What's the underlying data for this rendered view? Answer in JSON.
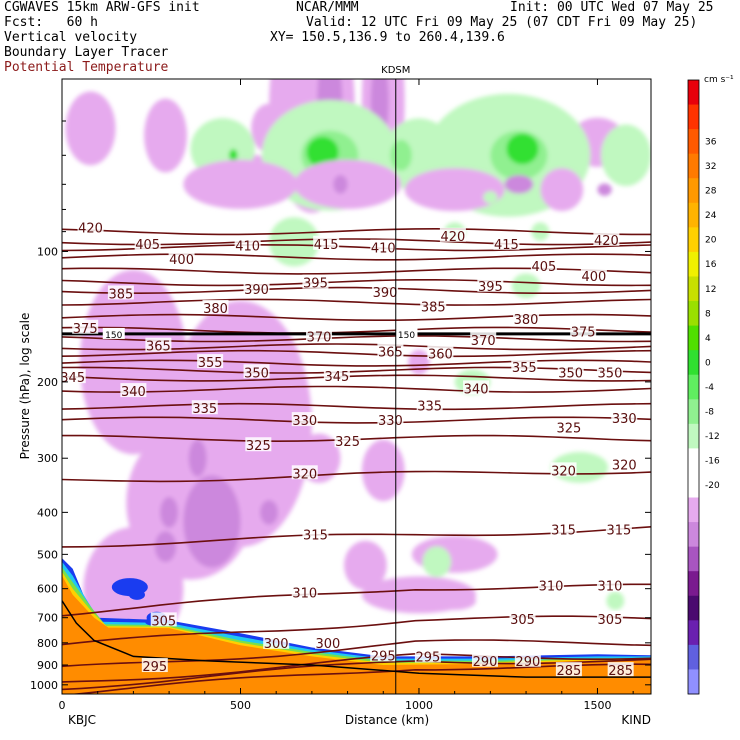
{
  "header": {
    "line1_left": "CGWAVES 15km ARW-GFS init",
    "line1_mid": "NCAR/MMM",
    "line1_right": "Init: 00 UTC Wed 07 May 25",
    "fcst": "Fcst:   60 h",
    "valid": "Valid: 12 UTC Fri 09 May 25 (07 CDT Fri 09 May 25)",
    "field1": "Vertical velocity",
    "xy": "XY= 150.5,136.9 to 260.4,139.6",
    "field2": "Boundary Layer Tracer",
    "field3": "Potential Temperature"
  },
  "colorbar": {
    "unit": "cm s⁻¹",
    "labels": [
      "36",
      "32",
      "28",
      "24",
      "20",
      "16",
      "12",
      "8",
      "4",
      "0",
      "-4",
      "-8",
      "-12",
      "-16",
      "-20"
    ],
    "colors": [
      "#e8000b",
      "#ff3300",
      "#ff5a00",
      "#ff7a00",
      "#ff9900",
      "#ffb300",
      "#ffd000",
      "#f0f000",
      "#c8e000",
      "#9ae000",
      "#50e000",
      "#30e030",
      "#60ee60",
      "#90f090",
      "#c0f8c0",
      "#ffffff",
      "#ffffff",
      "#e6aaee",
      "#cc88dd",
      "#a855c0",
      "#7a1a8f",
      "#4a0a6f",
      "#6a20b0",
      "#6060e0",
      "#9090ff"
    ]
  },
  "chart_data": {
    "type": "cross-section",
    "xlabel": "Distance (km)",
    "ylabel": "Pressure (hPa), log scale",
    "x_ticks": [
      "0",
      "500",
      "1000",
      "1500"
    ],
    "xlim": [
      0,
      1650
    ],
    "y_ticks": [
      "100",
      "200",
      "300",
      "400",
      "500",
      "600",
      "700",
      "800",
      "900",
      "1000"
    ],
    "ylim": [
      1050,
      40
    ],
    "y_scale": "log",
    "left_station": "KBJC",
    "right_station": "KIND",
    "marker_station": "KDSM",
    "marker_x_km": 935,
    "tropopause_pressure": 155,
    "tropopause_labels": [
      "150",
      "150"
    ],
    "theta_levels": [
      285,
      290,
      295,
      300,
      305,
      310,
      315,
      320,
      325,
      330,
      335,
      340,
      345,
      350,
      355,
      360,
      365,
      370,
      375,
      380,
      385,
      390,
      395,
      400,
      405,
      410,
      415,
      420
    ],
    "theta_labels": [
      {
        "text": "420",
        "x": 80,
        "p": 88
      },
      {
        "text": "405",
        "x": 240,
        "p": 96
      },
      {
        "text": "410",
        "x": 520,
        "p": 97
      },
      {
        "text": "415",
        "x": 740,
        "p": 96
      },
      {
        "text": "410",
        "x": 900,
        "p": 98
      },
      {
        "text": "420",
        "x": 1095,
        "p": 92
      },
      {
        "text": "415",
        "x": 1245,
        "p": 96
      },
      {
        "text": "420",
        "x": 1525,
        "p": 94
      },
      {
        "text": "400",
        "x": 335,
        "p": 104
      },
      {
        "text": "405",
        "x": 1350,
        "p": 108
      },
      {
        "text": "400",
        "x": 1490,
        "p": 114
      },
      {
        "text": "385",
        "x": 165,
        "p": 125
      },
      {
        "text": "390",
        "x": 545,
        "p": 122
      },
      {
        "text": "395",
        "x": 710,
        "p": 118
      },
      {
        "text": "390",
        "x": 905,
        "p": 124
      },
      {
        "text": "395",
        "x": 1200,
        "p": 120
      },
      {
        "text": "380",
        "x": 430,
        "p": 135
      },
      {
        "text": "385",
        "x": 1040,
        "p": 134
      },
      {
        "text": "380",
        "x": 1300,
        "p": 143
      },
      {
        "text": "375",
        "x": 65,
        "p": 150
      },
      {
        "text": "370",
        "x": 720,
        "p": 157
      },
      {
        "text": "370",
        "x": 1180,
        "p": 160
      },
      {
        "text": "375",
        "x": 1460,
        "p": 153
      },
      {
        "text": "365",
        "x": 270,
        "p": 165
      },
      {
        "text": "365",
        "x": 920,
        "p": 170
      },
      {
        "text": "360",
        "x": 1060,
        "p": 172
      },
      {
        "text": "355",
        "x": 415,
        "p": 180
      },
      {
        "text": "355",
        "x": 1295,
        "p": 185
      },
      {
        "text": "345",
        "x": 30,
        "p": 195
      },
      {
        "text": "350",
        "x": 545,
        "p": 190
      },
      {
        "text": "345",
        "x": 770,
        "p": 194
      },
      {
        "text": "350",
        "x": 1425,
        "p": 190
      },
      {
        "text": "350",
        "x": 1535,
        "p": 190
      },
      {
        "text": "340",
        "x": 200,
        "p": 210
      },
      {
        "text": "340",
        "x": 1160,
        "p": 207
      },
      {
        "text": "335",
        "x": 400,
        "p": 230
      },
      {
        "text": "335",
        "x": 1030,
        "p": 227
      },
      {
        "text": "330",
        "x": 680,
        "p": 245
      },
      {
        "text": "330",
        "x": 920,
        "p": 245
      },
      {
        "text": "330",
        "x": 1575,
        "p": 242
      },
      {
        "text": "325",
        "x": 550,
        "p": 280
      },
      {
        "text": "325",
        "x": 800,
        "p": 274
      },
      {
        "text": "325",
        "x": 1420,
        "p": 255
      },
      {
        "text": "320",
        "x": 680,
        "p": 325
      },
      {
        "text": "320",
        "x": 1405,
        "p": 320
      },
      {
        "text": "320",
        "x": 1575,
        "p": 310
      },
      {
        "text": "315",
        "x": 710,
        "p": 450
      },
      {
        "text": "315",
        "x": 1405,
        "p": 438
      },
      {
        "text": "315",
        "x": 1560,
        "p": 438
      },
      {
        "text": "310",
        "x": 680,
        "p": 612
      },
      {
        "text": "310",
        "x": 1370,
        "p": 590
      },
      {
        "text": "310",
        "x": 1535,
        "p": 590
      },
      {
        "text": "305",
        "x": 285,
        "p": 710
      },
      {
        "text": "305",
        "x": 1290,
        "p": 705
      },
      {
        "text": "305",
        "x": 1535,
        "p": 705
      },
      {
        "text": "300",
        "x": 600,
        "p": 800
      },
      {
        "text": "300",
        "x": 745,
        "p": 800
      },
      {
        "text": "295",
        "x": 260,
        "p": 905
      },
      {
        "text": "295",
        "x": 900,
        "p": 855
      },
      {
        "text": "295",
        "x": 1025,
        "p": 860
      },
      {
        "text": "290",
        "x": 1185,
        "p": 880
      },
      {
        "text": "290",
        "x": 1305,
        "p": 880
      },
      {
        "text": "285",
        "x": 1420,
        "p": 925
      },
      {
        "text": "285",
        "x": 1565,
        "p": 925
      }
    ]
  }
}
